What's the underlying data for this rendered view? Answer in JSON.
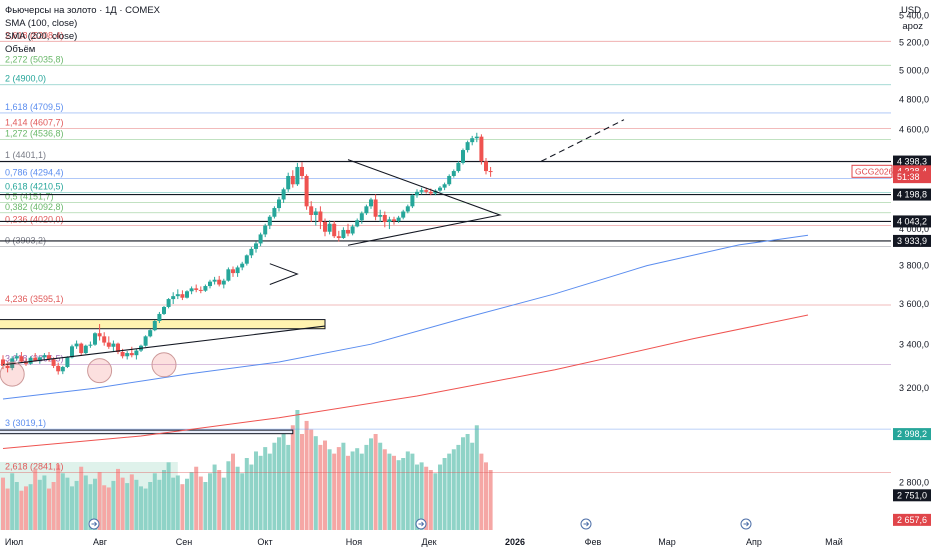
{
  "header": {
    "legend": [
      "Фьючерсы на золото · 1Д · COMEX",
      "SMA (100, close)",
      "SMA (200, close)",
      "Объём"
    ],
    "currency": "USD",
    "scale_mode": "apoz"
  },
  "colors": {
    "up": "#26a69a",
    "down": "#ef5350",
    "sma100": "#5b8def",
    "sma200": "#ef5350",
    "fib_red": "#e05a5a",
    "fib_green": "#6ab86a",
    "fib_teal": "#26a69a",
    "fib_blue": "#5b8def",
    "fib_grey": "#787b86",
    "fib_purple": "#a06ab4",
    "label_black": "#131722",
    "label_green": "#26a69a",
    "label_red": "#e0454a"
  },
  "chart_data": {
    "type": "candlestick",
    "y_axis": {
      "scale": "log",
      "range": [
        2620,
        5520
      ],
      "ticks": [
        "5 400,0",
        "5 200,0",
        "5 000,0",
        "4 800,0",
        "4 600,0",
        "4 400,0",
        "4 200,0",
        "4 000,0",
        "3 800,0",
        "3 600,0",
        "3 400,0",
        "3 200,0",
        "3 000,0",
        "2 800,0"
      ],
      "tick_values": [
        5400,
        5200,
        5000,
        4800,
        4600,
        4400,
        4200,
        4000,
        3800,
        3600,
        3400,
        3200,
        3000,
        2800
      ]
    },
    "x_axis": {
      "labels": [
        "Июл",
        "Авг",
        "Сен",
        "Окт",
        "Ноя",
        "Дек",
        "2026",
        "Фев",
        "Мар",
        "Апр",
        "Май"
      ],
      "bold": "2026"
    },
    "fib_levels": [
      {
        "label": "2,618 (5208,4)",
        "value": 5208.4,
        "color": "fib_red"
      },
      {
        "label": "2,272 (5035,8)",
        "value": 5035.8,
        "color": "fib_green"
      },
      {
        "label": "2 (4900,0)",
        "value": 4900.0,
        "color": "fib_teal"
      },
      {
        "label": "1,618 (4709,5)",
        "value": 4709.5,
        "color": "fib_blue"
      },
      {
        "label": "1,414 (4607,7)",
        "value": 4607.7,
        "color": "fib_red"
      },
      {
        "label": "1,272 (4536,8)",
        "value": 4536.8,
        "color": "fib_green"
      },
      {
        "label": "1 (4401,1)",
        "value": 4401.1,
        "color": "fib_grey"
      },
      {
        "label": "0,786 (4294,4)",
        "value": 4294.4,
        "color": "fib_blue"
      },
      {
        "label": "0,618 (4210,5)",
        "value": 4210.5,
        "color": "fib_teal"
      },
      {
        "label": "0,5 (4151,7)",
        "value": 4151.7,
        "color": "fib_green"
      },
      {
        "label": "0,382 (4092,8)",
        "value": 4092.8,
        "color": "fib_green"
      },
      {
        "label": "0,236 (4020,0)",
        "value": 4020.0,
        "color": "fib_red"
      },
      {
        "label": "0 (3903,2)",
        "value": 3903.2,
        "color": "fib_grey"
      },
      {
        "label": "4,236 (3595,1)",
        "value": 3595.1,
        "color": "fib_red"
      },
      {
        "label": "3,618 (3306,5)",
        "value": 3306.5,
        "color": "fib_purple"
      },
      {
        "label": "3 (3019,1)",
        "value": 3019.1,
        "color": "fib_blue"
      },
      {
        "label": "2,618 (2841,1)",
        "value": 2841.1,
        "color": "fib_red"
      }
    ],
    "horizontal_lines": [
      4398.3,
      4198.8,
      4043.2,
      3933.9
    ],
    "price_labels": [
      {
        "text": "4 398,3",
        "value": 4398.3,
        "style": "label_black"
      },
      {
        "text": "4 338,4",
        "value": 4338.4,
        "style": "label_red"
      },
      {
        "text": "51:38",
        "value": 4303.0,
        "style": "label_red"
      },
      {
        "text": "4 198,8",
        "value": 4198.8,
        "style": "label_black"
      },
      {
        "text": "4 043,2",
        "value": 4043.2,
        "style": "label_black"
      },
      {
        "text": "3 933,9",
        "value": 3933.9,
        "style": "label_black"
      },
      {
        "text": "2 998,2",
        "value": 2998.2,
        "style": "label_green"
      },
      {
        "text": "2 751,0",
        "value": 2751.0,
        "style": "label_black"
      },
      {
        "text": "2 657,6",
        "value": 2657.6,
        "style": "label_red"
      }
    ],
    "symbol_label": {
      "text": "GCG2026",
      "value": 4338.4
    },
    "candles": [
      [
        3330,
        3350,
        3285,
        3300
      ],
      [
        3300,
        3320,
        3270,
        3290
      ],
      [
        3290,
        3345,
        3280,
        3335
      ],
      [
        3335,
        3360,
        3325,
        3345
      ],
      [
        3345,
        3365,
        3315,
        3320
      ],
      [
        3320,
        3335,
        3300,
        3310
      ],
      [
        3310,
        3345,
        3305,
        3338
      ],
      [
        3338,
        3360,
        3320,
        3325
      ],
      [
        3325,
        3345,
        3310,
        3340
      ],
      [
        3340,
        3360,
        3330,
        3350
      ],
      [
        3350,
        3365,
        3320,
        3330
      ],
      [
        3330,
        3340,
        3290,
        3300
      ],
      [
        3300,
        3315,
        3260,
        3275
      ],
      [
        3275,
        3300,
        3262,
        3295
      ],
      [
        3295,
        3345,
        3290,
        3340
      ],
      [
        3340,
        3400,
        3335,
        3392
      ],
      [
        3392,
        3420,
        3380,
        3405
      ],
      [
        3405,
        3410,
        3350,
        3360
      ],
      [
        3360,
        3400,
        3355,
        3395
      ],
      [
        3395,
        3415,
        3385,
        3400
      ],
      [
        3400,
        3460,
        3395,
        3455
      ],
      [
        3455,
        3500,
        3420,
        3440
      ],
      [
        3440,
        3460,
        3395,
        3410
      ],
      [
        3410,
        3440,
        3380,
        3390
      ],
      [
        3390,
        3420,
        3370,
        3405
      ],
      [
        3405,
        3410,
        3355,
        3365
      ],
      [
        3365,
        3380,
        3335,
        3345
      ],
      [
        3345,
        3370,
        3330,
        3360
      ],
      [
        3360,
        3390,
        3340,
        3350
      ],
      [
        3350,
        3380,
        3330,
        3372
      ],
      [
        3372,
        3400,
        3365,
        3395
      ],
      [
        3395,
        3445,
        3390,
        3440
      ],
      [
        3440,
        3475,
        3435,
        3470
      ],
      [
        3470,
        3520,
        3465,
        3515
      ],
      [
        3515,
        3560,
        3505,
        3550
      ],
      [
        3550,
        3590,
        3545,
        3585
      ],
      [
        3585,
        3630,
        3578,
        3625
      ],
      [
        3625,
        3660,
        3600,
        3640
      ],
      [
        3640,
        3675,
        3625,
        3650
      ],
      [
        3650,
        3670,
        3620,
        3632
      ],
      [
        3632,
        3670,
        3628,
        3665
      ],
      [
        3665,
        3690,
        3650,
        3680
      ],
      [
        3680,
        3700,
        3660,
        3672
      ],
      [
        3672,
        3690,
        3655,
        3668
      ],
      [
        3668,
        3700,
        3662,
        3692
      ],
      [
        3692,
        3725,
        3680,
        3715
      ],
      [
        3715,
        3740,
        3700,
        3725
      ],
      [
        3725,
        3745,
        3690,
        3700
      ],
      [
        3700,
        3730,
        3680,
        3720
      ],
      [
        3720,
        3790,
        3715,
        3780
      ],
      [
        3780,
        3795,
        3740,
        3760
      ],
      [
        3760,
        3800,
        3740,
        3790
      ],
      [
        3790,
        3820,
        3775,
        3810
      ],
      [
        3810,
        3860,
        3800,
        3855
      ],
      [
        3855,
        3900,
        3840,
        3890
      ],
      [
        3890,
        3930,
        3870,
        3920
      ],
      [
        3920,
        3980,
        3905,
        3970
      ],
      [
        3970,
        4030,
        3955,
        4020
      ],
      [
        4020,
        4080,
        4000,
        4070
      ],
      [
        4070,
        4130,
        4060,
        4120
      ],
      [
        4120,
        4185,
        4100,
        4170
      ],
      [
        4170,
        4240,
        4150,
        4230
      ],
      [
        4230,
        4330,
        4215,
        4310
      ],
      [
        4310,
        4345,
        4240,
        4260
      ],
      [
        4260,
        4390,
        4250,
        4365
      ],
      [
        4365,
        4395,
        4290,
        4310
      ],
      [
        4310,
        4320,
        4110,
        4130
      ],
      [
        4130,
        4160,
        4040,
        4080
      ],
      [
        4080,
        4120,
        4020,
        4100
      ],
      [
        4100,
        4130,
        4000,
        4040
      ],
      [
        4040,
        4060,
        3960,
        3985
      ],
      [
        3985,
        4050,
        3970,
        4030
      ],
      [
        4030,
        4045,
        3950,
        3960
      ],
      [
        3960,
        3990,
        3930,
        3950
      ],
      [
        3950,
        4010,
        3945,
        3995
      ],
      [
        3995,
        4030,
        3960,
        3975
      ],
      [
        3975,
        4025,
        3965,
        4015
      ],
      [
        4015,
        4060,
        4010,
        4050
      ],
      [
        4050,
        4100,
        4030,
        4090
      ],
      [
        4090,
        4140,
        4080,
        4130
      ],
      [
        4130,
        4180,
        4115,
        4170
      ],
      [
        4170,
        4200,
        4050,
        4070
      ],
      [
        4070,
        4110,
        4040,
        4080
      ],
      [
        4080,
        4100,
        4010,
        4040
      ],
      [
        4040,
        4070,
        4000,
        4055
      ],
      [
        4055,
        4070,
        4025,
        4045
      ],
      [
        4045,
        4075,
        4035,
        4065
      ],
      [
        4065,
        4110,
        4055,
        4100
      ],
      [
        4100,
        4140,
        4090,
        4130
      ],
      [
        4130,
        4200,
        4120,
        4195
      ],
      [
        4195,
        4230,
        4180,
        4215
      ],
      [
        4215,
        4240,
        4200,
        4225
      ],
      [
        4225,
        4240,
        4205,
        4215
      ],
      [
        4215,
        4235,
        4195,
        4205
      ],
      [
        4205,
        4230,
        4195,
        4222
      ],
      [
        4222,
        4250,
        4215,
        4240
      ],
      [
        4240,
        4270,
        4225,
        4260
      ],
      [
        4260,
        4320,
        4250,
        4310
      ],
      [
        4310,
        4350,
        4300,
        4340
      ],
      [
        4340,
        4400,
        4330,
        4390
      ],
      [
        4390,
        4480,
        4380,
        4470
      ],
      [
        4470,
        4530,
        4455,
        4520
      ],
      [
        4520,
        4560,
        4500,
        4545
      ],
      [
        4545,
        4580,
        4520,
        4555
      ],
      [
        4555,
        4570,
        4380,
        4400
      ],
      [
        4400,
        4420,
        4320,
        4340
      ],
      [
        4340,
        4365,
        4305,
        4338
      ]
    ],
    "volumes": [
      48,
      38,
      52,
      44,
      36,
      40,
      42,
      55,
      46,
      50,
      38,
      44,
      60,
      52,
      48,
      40,
      45,
      58,
      50,
      42,
      47,
      53,
      41,
      39,
      45,
      56,
      48,
      43,
      51,
      46,
      40,
      38,
      44,
      52,
      46,
      55,
      62,
      48,
      50,
      42,
      47,
      53,
      58,
      49,
      44,
      52,
      60,
      55,
      48,
      63,
      70,
      58,
      52,
      66,
      60,
      72,
      68,
      76,
      70,
      80,
      85,
      90,
      78,
      96,
      110,
      88,
      100,
      92,
      86,
      78,
      82,
      74,
      70,
      76,
      80,
      68,
      72,
      75,
      70,
      78,
      84,
      88,
      80,
      74,
      70,
      68,
      64,
      66,
      72,
      70,
      60,
      62,
      58,
      55,
      52,
      60,
      66,
      70,
      74,
      78,
      85,
      88,
      80,
      96,
      70,
      62,
      55
    ],
    "sma100": [
      [
        0,
        3150
      ],
      [
        20,
        3198
      ],
      [
        40,
        3262
      ],
      [
        60,
        3318
      ],
      [
        80,
        3402
      ],
      [
        100,
        3528
      ],
      [
        120,
        3652
      ],
      [
        140,
        3800
      ],
      [
        160,
        3912
      ],
      [
        175,
        3965
      ]
    ],
    "sma200": [
      [
        0,
        2938
      ],
      [
        30,
        2990
      ],
      [
        60,
        3068
      ],
      [
        90,
        3163
      ],
      [
        120,
        3282
      ],
      [
        150,
        3428
      ],
      [
        175,
        3545
      ]
    ],
    "patterns": {
      "triangle": {
        "apex_idx": 108,
        "apex_price": 4080,
        "start_idx": 75,
        "top_price": 4410,
        "bottom_price": 3910
      },
      "ascending_triangle": {
        "start_idx": 0,
        "start_price": 3305,
        "end_idx": 70,
        "end_price": 3490,
        "top_price": 3500
      },
      "small_triangle": {
        "start_idx": 58,
        "top_price": 3810,
        "bottom_price": 3700,
        "apex_idx": 64,
        "apex_price": 3755
      },
      "projection": [
        [
          117,
          4400
        ],
        [
          135,
          4665
        ]
      ],
      "rect_top": [
        0,
        70,
        3522,
        3477
      ],
      "rect_low": [
        0,
        63,
        3015,
        3000
      ],
      "circles": [
        [
          2,
          3262
        ],
        [
          21,
          3278
        ],
        [
          35,
          3305
        ]
      ],
      "green_zone": [
        0,
        38
      ]
    }
  }
}
